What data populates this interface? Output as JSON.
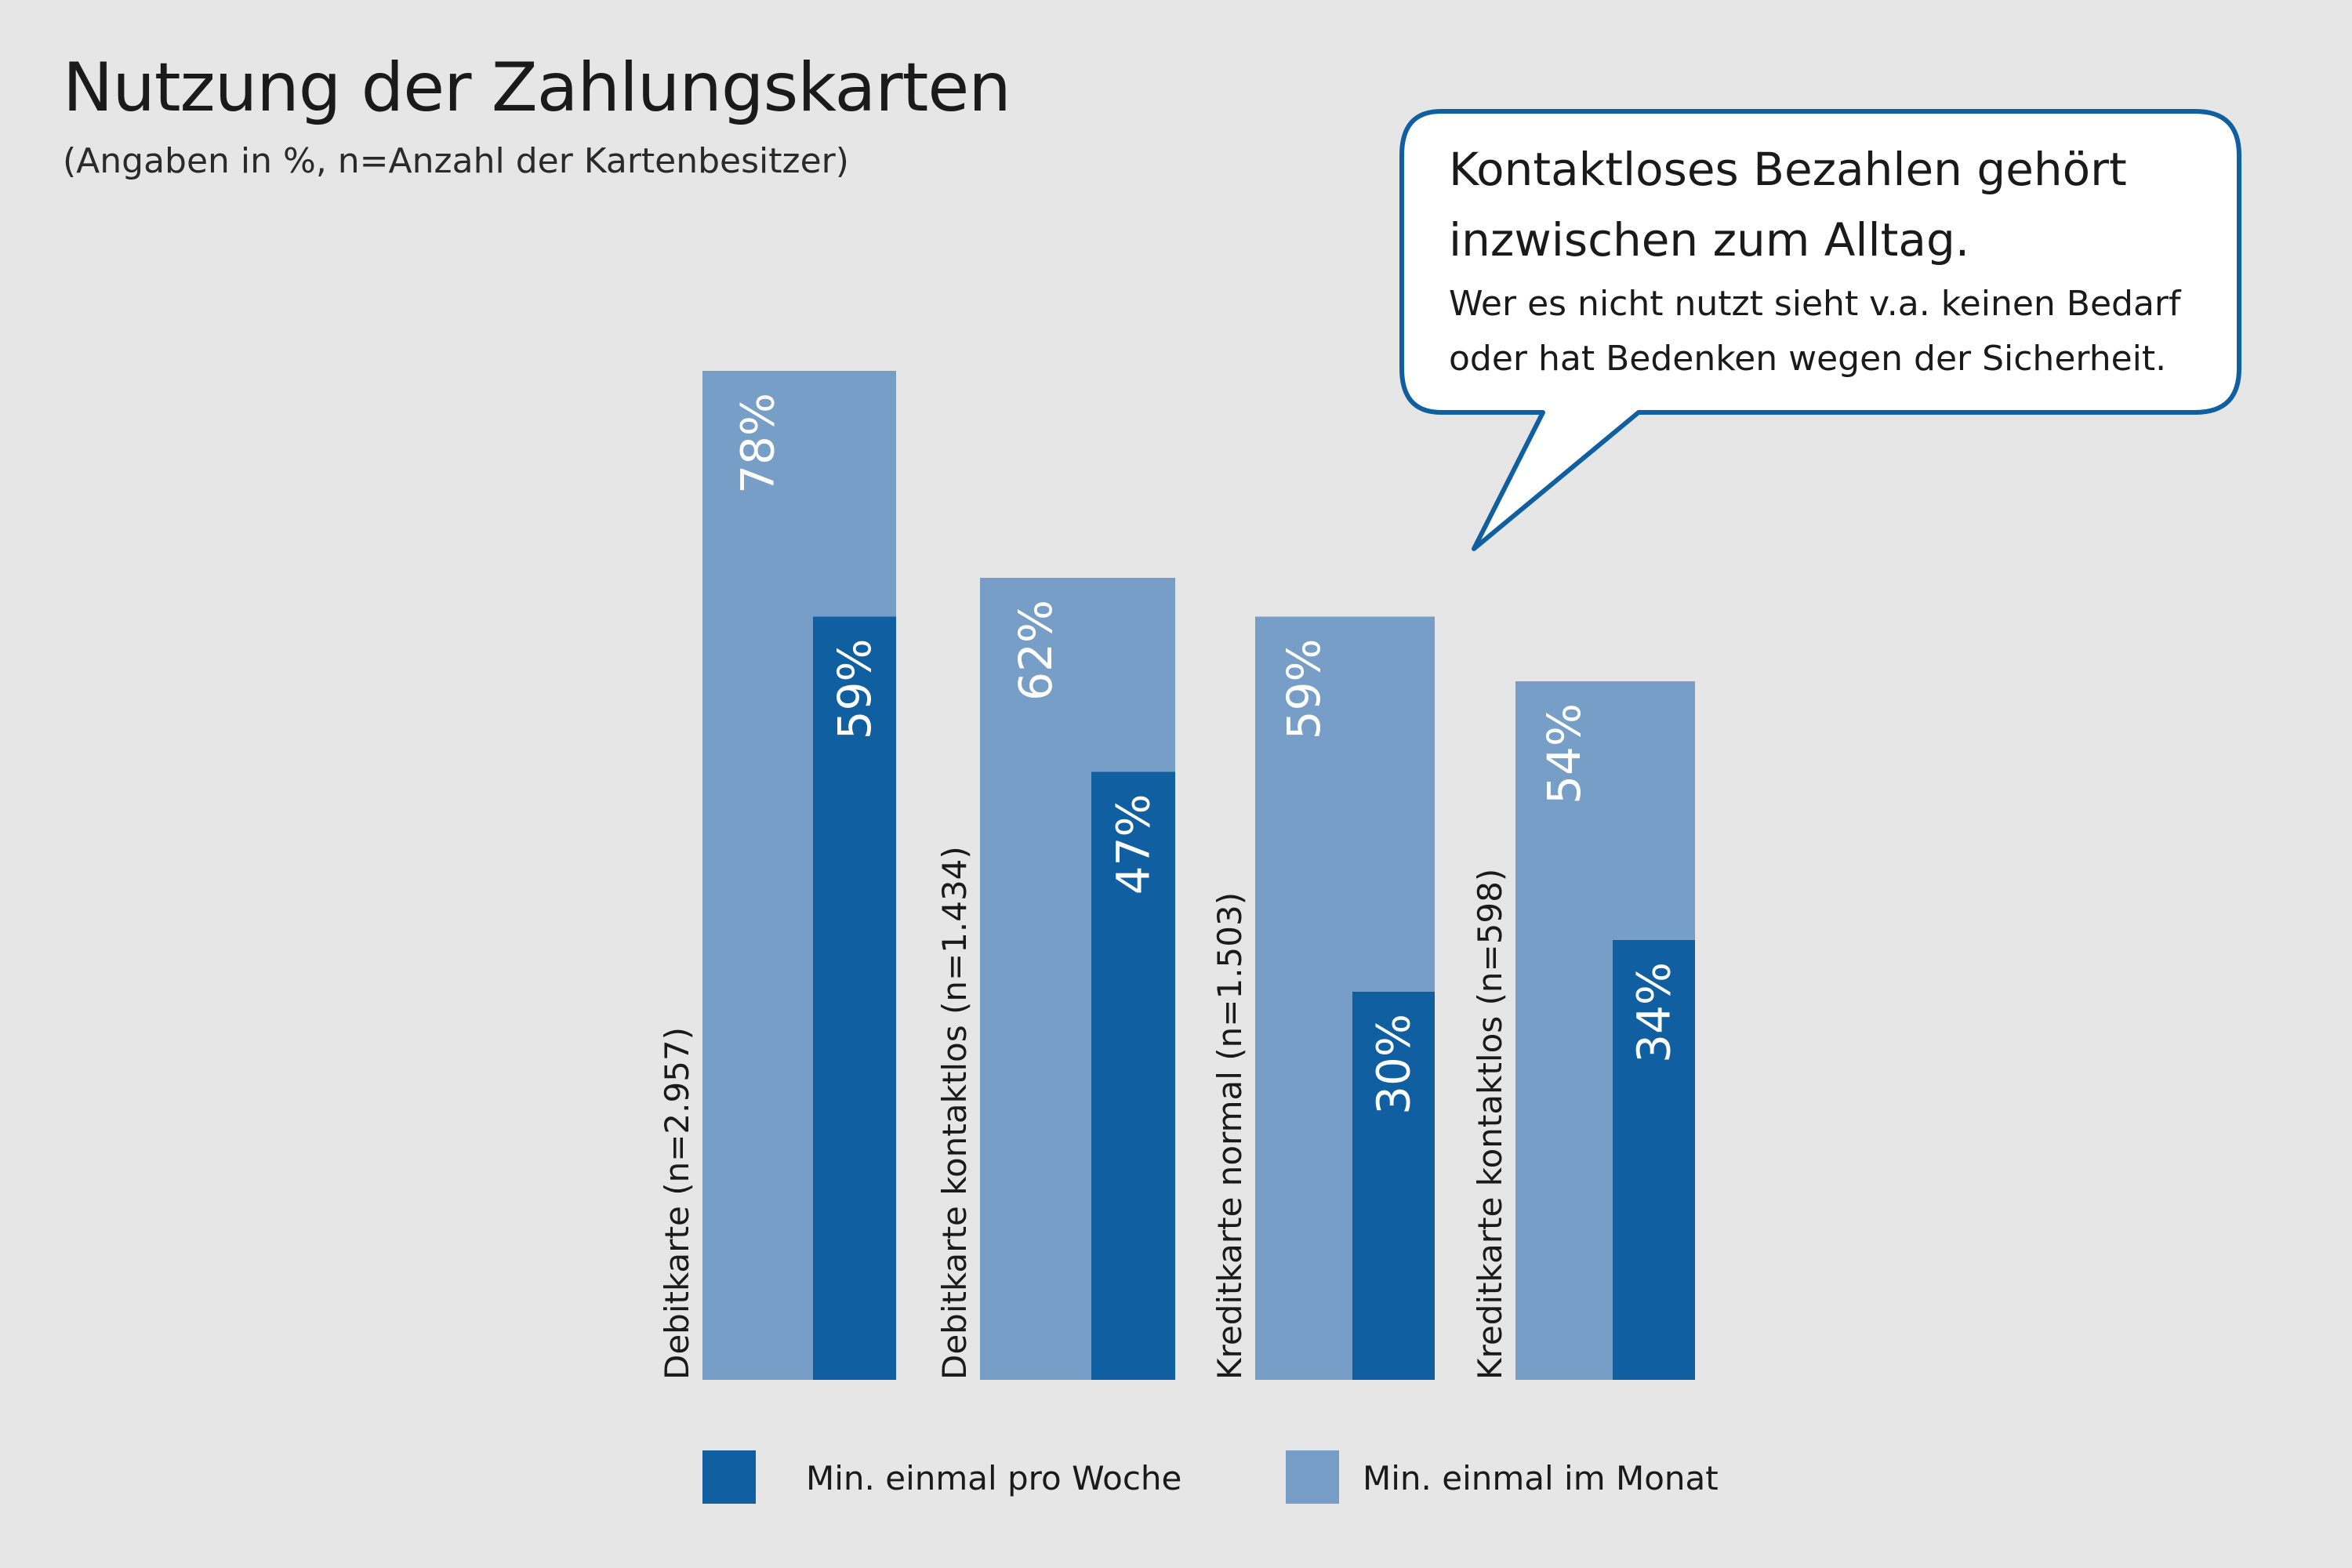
{
  "chart_data": {
    "type": "bar",
    "title": "Nutzung der Zahlungskarten",
    "subtitle": "(Angaben in %, n=Anzahl der Kartenbesitzer)",
    "categories": [
      "Debitkarte (n=2.957)",
      "Debitkarte kontaktlos (n=1.434)",
      "Kreditkarte normal (n=1.503)",
      "Kreditkarte kontaktlos (n=598)"
    ],
    "series": [
      {
        "name": "Min. einmal im Monat",
        "values": [
          78,
          62,
          59,
          54
        ],
        "labels": [
          "78%",
          "62%",
          "59%",
          "54%"
        ],
        "color": "#779ec6"
      },
      {
        "name": "Min. einmal pro Woche",
        "values": [
          59,
          47,
          30,
          34
        ],
        "labels": [
          "59%",
          "47%",
          "30%",
          "34%"
        ],
        "color": "#0f5fa1"
      }
    ],
    "ylim": [
      0,
      100
    ],
    "grid": false,
    "legend": [
      "Min. einmal pro Woche",
      "Min. einmal im Monat"
    ],
    "legend_position": "bottom"
  },
  "callout": {
    "line1": "Kontaktloses Bezahlen gehört",
    "line2": "inzwischen zum Alltag.",
    "line3": "Wer es nicht nutzt sieht v.a. keinen Bedarf",
    "line4": "oder hat Bedenken wegen der Sicherheit."
  },
  "colors": {
    "background": "#e6e6e6",
    "monthly": "#779ec6",
    "weekly": "#0f5fa1",
    "callout_border": "#0f5fa1"
  }
}
